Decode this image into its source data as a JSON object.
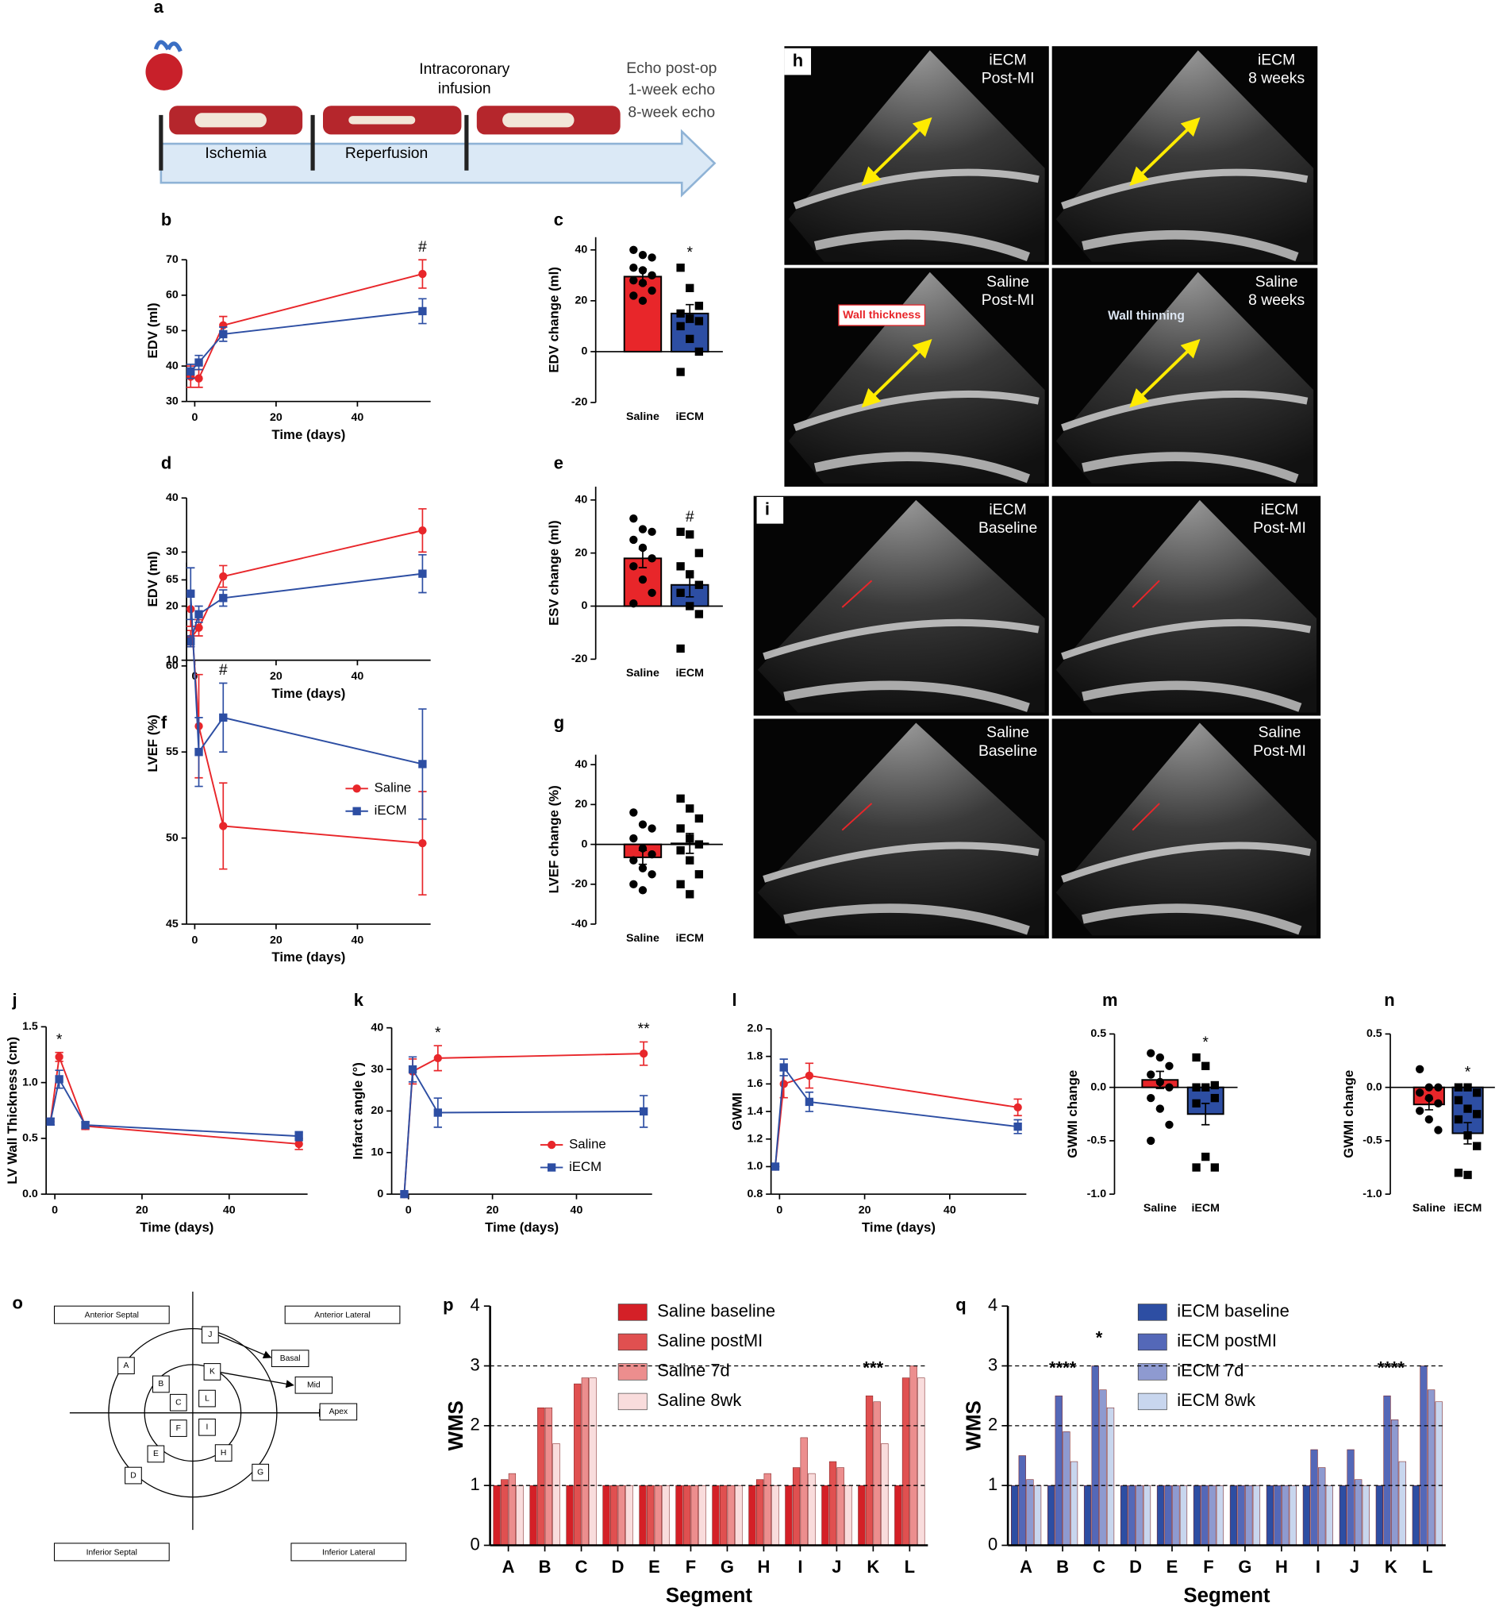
{
  "timeline": {
    "panel": "a",
    "phases": [
      "Ischemia",
      "Reperfusion"
    ],
    "infusion": [
      "Intracoronary",
      "infusion"
    ],
    "echo": [
      "Echo post-op",
      "1-week echo",
      "8-week echo"
    ]
  },
  "echo_h": {
    "panel": "h",
    "tiles": [
      [
        "iECM",
        "Post-MI"
      ],
      [
        "iECM",
        "8 weeks"
      ],
      [
        "Saline",
        "Post-MI"
      ],
      [
        "Saline",
        "8 weeks"
      ]
    ],
    "callouts": [
      "Wall thickness",
      "Wall thinning"
    ]
  },
  "echo_i": {
    "panel": "i",
    "tiles": [
      [
        "iECM",
        "Baseline"
      ],
      [
        "iECM",
        "Post-MI"
      ],
      [
        "Saline",
        "Baseline"
      ],
      [
        "Saline",
        "Post-MI"
      ]
    ]
  },
  "segment_diagram": {
    "panel": "o",
    "regions": [
      "Anterior Septal",
      "Anterior Lateral",
      "Inferior Septal",
      "Inferior Lateral"
    ],
    "segments": [
      "A",
      "B",
      "C",
      "D",
      "E",
      "F",
      "G",
      "H",
      "I",
      "J",
      "K",
      "L"
    ],
    "levels": [
      "Basal",
      "Mid",
      "Apex"
    ]
  },
  "chart_data": [
    {
      "type": "line",
      "panel": "b",
      "xlabel": "Time (days)",
      "ylabel": "EDV (ml)",
      "x": [
        -1,
        1,
        7,
        56
      ],
      "xlim": [
        -2,
        58
      ],
      "xticks": [
        0,
        20,
        40
      ],
      "ylim": [
        30,
        70
      ],
      "yticks": [
        30,
        40,
        50,
        60,
        70
      ],
      "series": [
        {
          "name": "Saline",
          "color": "#e8262a",
          "values": [
            37,
            36.5,
            51.5,
            66
          ],
          "errors": [
            3,
            2.5,
            2.5,
            4
          ]
        },
        {
          "name": "iECM",
          "color": "#2d4ea3",
          "values": [
            38.5,
            41,
            49,
            55.5
          ],
          "errors": [
            2,
            2,
            2,
            3.5
          ]
        }
      ],
      "annotations": [
        {
          "text": "#",
          "x": 56
        }
      ]
    },
    {
      "type": "bar",
      "panel": "c",
      "ylabel": "EDV change (ml)",
      "categories": [
        "Saline",
        "iECM"
      ],
      "colors": [
        "#e8262a",
        "#2d4ea3"
      ],
      "values": [
        29.5,
        15
      ],
      "errors": [
        3,
        3.5
      ],
      "ylim": [
        -20,
        45
      ],
      "yticks": [
        -20,
        0,
        20,
        40
      ],
      "points": [
        [
          40,
          38,
          37,
          33,
          32,
          30,
          28,
          27,
          24,
          22,
          20
        ],
        [
          33,
          25,
          18,
          15,
          13,
          12,
          10,
          5,
          0,
          -8
        ]
      ],
      "annotations": [
        {
          "text": "*",
          "x": "iECM"
        }
      ]
    },
    {
      "type": "line",
      "panel": "d",
      "xlabel": "Time (days)",
      "ylabel": "EDV (ml)",
      "x": [
        -1,
        1,
        7,
        56
      ],
      "xlim": [
        -2,
        58
      ],
      "xticks": [
        0,
        20,
        40
      ],
      "ylim": [
        10,
        40
      ],
      "yticks": [
        10,
        20,
        30,
        40
      ],
      "series": [
        {
          "name": "Saline",
          "color": "#e8262a",
          "values": [
            14,
            16,
            25.5,
            34
          ],
          "errors": [
            1.5,
            1.5,
            2,
            4
          ]
        },
        {
          "name": "iECM",
          "color": "#2d4ea3",
          "values": [
            13.5,
            18.5,
            21.5,
            26
          ],
          "errors": [
            1,
            1.5,
            1.5,
            3.5
          ]
        }
      ]
    },
    {
      "type": "bar",
      "panel": "e",
      "ylabel": "ESV change (ml)",
      "categories": [
        "Saline",
        "iECM"
      ],
      "colors": [
        "#e8262a",
        "#2d4ea3"
      ],
      "values": [
        18,
        8
      ],
      "errors": [
        3.5,
        4.5
      ],
      "ylim": [
        -20,
        45
      ],
      "yticks": [
        -20,
        0,
        20,
        40
      ],
      "points": [
        [
          33,
          29,
          28,
          25,
          22,
          18,
          15,
          10,
          5,
          1
        ],
        [
          28,
          27,
          20,
          15,
          12,
          8,
          5,
          0,
          -3,
          -16
        ]
      ],
      "annotations": [
        {
          "text": "#",
          "x": "iECM"
        }
      ]
    },
    {
      "type": "line",
      "panel": "f",
      "xlabel": "Time (days)",
      "ylabel": "LVEF (%)",
      "x": [
        -1,
        1,
        7,
        56
      ],
      "xlim": [
        -2,
        58
      ],
      "xticks": [
        0,
        20,
        40
      ],
      "ylim": [
        45,
        66
      ],
      "yticks": [
        45,
        50,
        55,
        60,
        65
      ],
      "legend": true,
      "series": [
        {
          "name": "Saline",
          "color": "#e8262a",
          "values": [
            63.3,
            56.5,
            50.7,
            49.7
          ],
          "errors": [
            1,
            3,
            2.5,
            3
          ]
        },
        {
          "name": "iECM",
          "color": "#2d4ea3",
          "values": [
            64.2,
            55,
            57,
            54.3
          ],
          "errors": [
            1.5,
            2,
            2,
            3.2
          ]
        }
      ],
      "annotations": [
        {
          "text": "#",
          "x": 7
        }
      ]
    },
    {
      "type": "bar",
      "panel": "g",
      "ylabel": "LVEF change (%)",
      "categories": [
        "Saline",
        "iECM"
      ],
      "colors": [
        "#e8262a",
        "#2d4ea3"
      ],
      "values": [
        -6.5,
        0.5
      ],
      "errors": [
        3.5,
        5
      ],
      "ylim": [
        -40,
        45
      ],
      "yticks": [
        -40,
        -20,
        0,
        20,
        40
      ],
      "points": [
        [
          16,
          10,
          8,
          3,
          -2,
          -5,
          -8,
          -12,
          -15,
          -20,
          -23
        ],
        [
          23,
          18,
          13,
          8,
          3,
          0,
          -3,
          -8,
          -15,
          -20,
          -25
        ]
      ]
    },
    {
      "type": "line",
      "panel": "j",
      "xlabel": "Time (days)",
      "ylabel": "LV Wall Thickness (cm)",
      "x": [
        -1,
        1,
        7,
        56
      ],
      "xlim": [
        -2,
        58
      ],
      "xticks": [
        0,
        20,
        40
      ],
      "ylim": [
        0,
        1.5
      ],
      "yticks": [
        {
          "value": 0,
          "label": "0.0"
        },
        0.5,
        {
          "value": 1,
          "label": "1.0"
        },
        1.5
      ],
      "series": [
        {
          "name": "Saline",
          "color": "#e8262a",
          "values": [
            0.65,
            1.23,
            0.61,
            0.45
          ],
          "errors": [
            0.03,
            0.04,
            0.03,
            0.05
          ]
        },
        {
          "name": "iECM",
          "color": "#2d4ea3",
          "values": [
            0.65,
            1.03,
            0.62,
            0.52
          ],
          "errors": [
            0.03,
            0.08,
            0.03,
            0.04
          ]
        }
      ],
      "annotations": [
        {
          "text": "*",
          "x": 1
        }
      ]
    },
    {
      "type": "line",
      "panel": "k",
      "xlabel": "Time (days)",
      "ylabel": "Infarct angle (°)",
      "x": [
        -1,
        1,
        7,
        56
      ],
      "xlim": [
        -4,
        58
      ],
      "xticks": [
        0,
        20,
        40
      ],
      "ylim": [
        0,
        40
      ],
      "yticks": [
        0,
        10,
        20,
        30,
        40
      ],
      "legend": true,
      "series": [
        {
          "name": "Saline",
          "color": "#e8262a",
          "values": [
            0,
            29.5,
            32.7,
            33.8
          ],
          "errors": [
            0,
            3,
            3,
            2.8
          ]
        },
        {
          "name": "iECM",
          "color": "#2d4ea3",
          "values": [
            0,
            30,
            19.6,
            19.9
          ],
          "errors": [
            0,
            3,
            3.5,
            3.8
          ]
        }
      ],
      "annotations": [
        {
          "text": "*",
          "x": 7
        },
        {
          "text": "**",
          "x": 56
        }
      ]
    },
    {
      "type": "line",
      "panel": "l",
      "xlabel": "Time (days)",
      "ylabel": "GWMI",
      "x": [
        -1,
        1,
        7,
        56
      ],
      "xlim": [
        -2,
        58
      ],
      "xticks": [
        0,
        20,
        40
      ],
      "ylim": [
        0.8,
        2
      ],
      "yticks": [
        0.8,
        {
          "value": 1,
          "label": "1.0"
        },
        1.2,
        1.4,
        1.6,
        1.8,
        {
          "value": 2,
          "label": "2.0"
        }
      ],
      "series": [
        {
          "name": "Saline",
          "color": "#e8262a",
          "values": [
            1,
            1.6,
            1.66,
            1.43
          ],
          "errors": [
            0,
            0.1,
            0.09,
            0.06
          ]
        },
        {
          "name": "iECM",
          "color": "#2d4ea3",
          "values": [
            1,
            1.72,
            1.47,
            1.29
          ],
          "errors": [
            0,
            0.06,
            0.07,
            0.05
          ]
        }
      ]
    },
    {
      "type": "bar",
      "panel": "m",
      "ylabel": "GWMI change",
      "categories": [
        "Saline",
        "iECM"
      ],
      "colors": [
        "#e8262a",
        "#2d4ea3"
      ],
      "values": [
        0.07,
        -0.25
      ],
      "errors": [
        0.08,
        0.1
      ],
      "ylim": [
        -1,
        0.5
      ],
      "yticks": [
        {
          "value": -1,
          "label": "-1.0"
        },
        -0.5,
        {
          "value": 0,
          "label": "0.0"
        },
        0.5
      ],
      "points": [
        [
          0.32,
          0.28,
          0.2,
          0.12,
          0.05,
          0,
          -0.1,
          -0.2,
          -0.35,
          -0.5
        ],
        [
          0.28,
          0.2,
          0.02,
          0,
          0,
          -0.1,
          -0.15,
          -0.65,
          -0.75,
          -0.75
        ]
      ],
      "annotations": [
        {
          "text": "*",
          "x": "iECM"
        }
      ]
    },
    {
      "type": "bar",
      "panel": "n",
      "ylabel": "GWMI change",
      "categories": [
        "Saline",
        "iECM"
      ],
      "colors": [
        "#e8262a",
        "#2d4ea3"
      ],
      "values": [
        -0.16,
        -0.43
      ],
      "errors": [
        0.05,
        0.1
      ],
      "ylim": [
        -1,
        0.5
      ],
      "yticks": [
        {
          "value": -1,
          "label": "-1.0"
        },
        -0.5,
        {
          "value": 0,
          "label": "0.0"
        },
        0.5
      ],
      "points": [
        [
          0.17,
          0,
          0,
          -0.05,
          -0.1,
          -0.15,
          -0.22,
          -0.3,
          -0.4
        ],
        [
          0,
          0,
          -0.05,
          -0.12,
          -0.2,
          -0.25,
          -0.3,
          -0.45,
          -0.55,
          -0.8,
          -0.82
        ]
      ],
      "annotations": [
        {
          "text": "*",
          "x": "iECM"
        }
      ]
    },
    {
      "type": "grouped_bar",
      "panel": "p",
      "xlabel": "Segment",
      "ylabel": "WMS",
      "categories": [
        "A",
        "B",
        "C",
        "D",
        "E",
        "F",
        "G",
        "H",
        "I",
        "J",
        "K",
        "L"
      ],
      "ylim": [
        0,
        4
      ],
      "yticks": [
        0,
        1,
        2,
        3,
        4
      ],
      "reference_lines": [
        1,
        2,
        3
      ],
      "series": [
        {
          "name": "Saline baseline",
          "color": "#d42027",
          "values": [
            1,
            1,
            1,
            1,
            1,
            1,
            1,
            1,
            1,
            1,
            1,
            1
          ]
        },
        {
          "name": "Saline postMI",
          "color": "#e05050",
          "values": [
            1.1,
            2.3,
            2.7,
            1,
            1,
            1,
            1,
            1.1,
            1.3,
            1.4,
            2.5,
            2.8
          ]
        },
        {
          "name": "Saline 7d",
          "color": "#ec8e8e",
          "values": [
            1.2,
            2.3,
            2.8,
            1,
            1,
            1,
            1,
            1.2,
            1.8,
            1.3,
            2.4,
            3
          ]
        },
        {
          "name": "Saline 8wk",
          "color": "#f9dcdc",
          "values": [
            1,
            1.7,
            2.8,
            1,
            1,
            1,
            1,
            1,
            1.2,
            1,
            1.7,
            2.8
          ]
        }
      ],
      "annotations": [
        {
          "text": "***",
          "x": "K"
        }
      ]
    },
    {
      "type": "grouped_bar",
      "panel": "q",
      "xlabel": "Segment",
      "ylabel": "WMS",
      "categories": [
        "A",
        "B",
        "C",
        "D",
        "E",
        "F",
        "G",
        "H",
        "I",
        "J",
        "K",
        "L"
      ],
      "ylim": [
        0,
        4
      ],
      "yticks": [
        0,
        1,
        2,
        3,
        4
      ],
      "reference_lines": [
        1,
        2,
        3
      ],
      "series": [
        {
          "name": "iECM baseline",
          "color": "#2d4ea3",
          "values": [
            1,
            1,
            1,
            1,
            1,
            1,
            1,
            1,
            1,
            1,
            1,
            1
          ]
        },
        {
          "name": "iECM postMI",
          "color": "#5468b8",
          "values": [
            1.5,
            2.5,
            3,
            1,
            1,
            1,
            1,
            1,
            1.6,
            1.6,
            2.5,
            3
          ]
        },
        {
          "name": "iECM 7d",
          "color": "#8e9ad0",
          "values": [
            1.1,
            1.9,
            2.6,
            1,
            1,
            1,
            1,
            1,
            1.3,
            1.1,
            2.1,
            2.6
          ]
        },
        {
          "name": "iECM 8wk",
          "color": "#c8d6ee",
          "values": [
            1,
            1.4,
            2.3,
            1,
            1,
            1,
            1,
            1,
            1,
            1,
            1.4,
            2.4
          ]
        }
      ],
      "annotations": [
        {
          "text": "****",
          "x": "B"
        },
        {
          "text": "*",
          "x": "C"
        },
        {
          "text": "****",
          "x": "K"
        }
      ]
    }
  ]
}
